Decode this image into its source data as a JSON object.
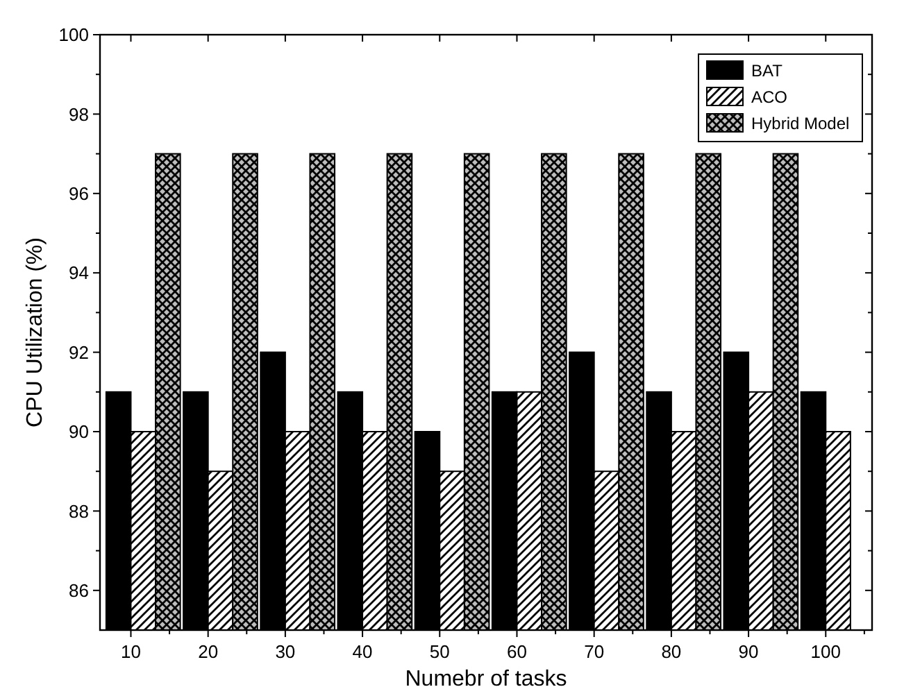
{
  "chart_data": {
    "type": "bar",
    "xlabel": "Numebr of tasks",
    "ylabel": "CPU Utilization (%)",
    "categories": [
      "10",
      "20",
      "30",
      "40",
      "50",
      "60",
      "70",
      "80",
      "90",
      "100"
    ],
    "series": [
      {
        "name": "BAT",
        "color": "#000000",
        "values": [
          91,
          91,
          92,
          91,
          90,
          91,
          92,
          91,
          92,
          91
        ]
      },
      {
        "name": "ACO",
        "color": "#000000",
        "values": [
          90,
          89,
          90,
          90,
          89,
          91,
          89,
          90,
          91,
          90
        ]
      },
      {
        "name": "Hybrid Model",
        "color": "#000000",
        "values": [
          97,
          97,
          97,
          97,
          97,
          97,
          97,
          97,
          97,
          null
        ]
      }
    ],
    "ylim": [
      85,
      100
    ],
    "yticks": [
      86,
      88,
      90,
      92,
      94,
      96,
      98,
      100
    ],
    "legend": "top right"
  }
}
